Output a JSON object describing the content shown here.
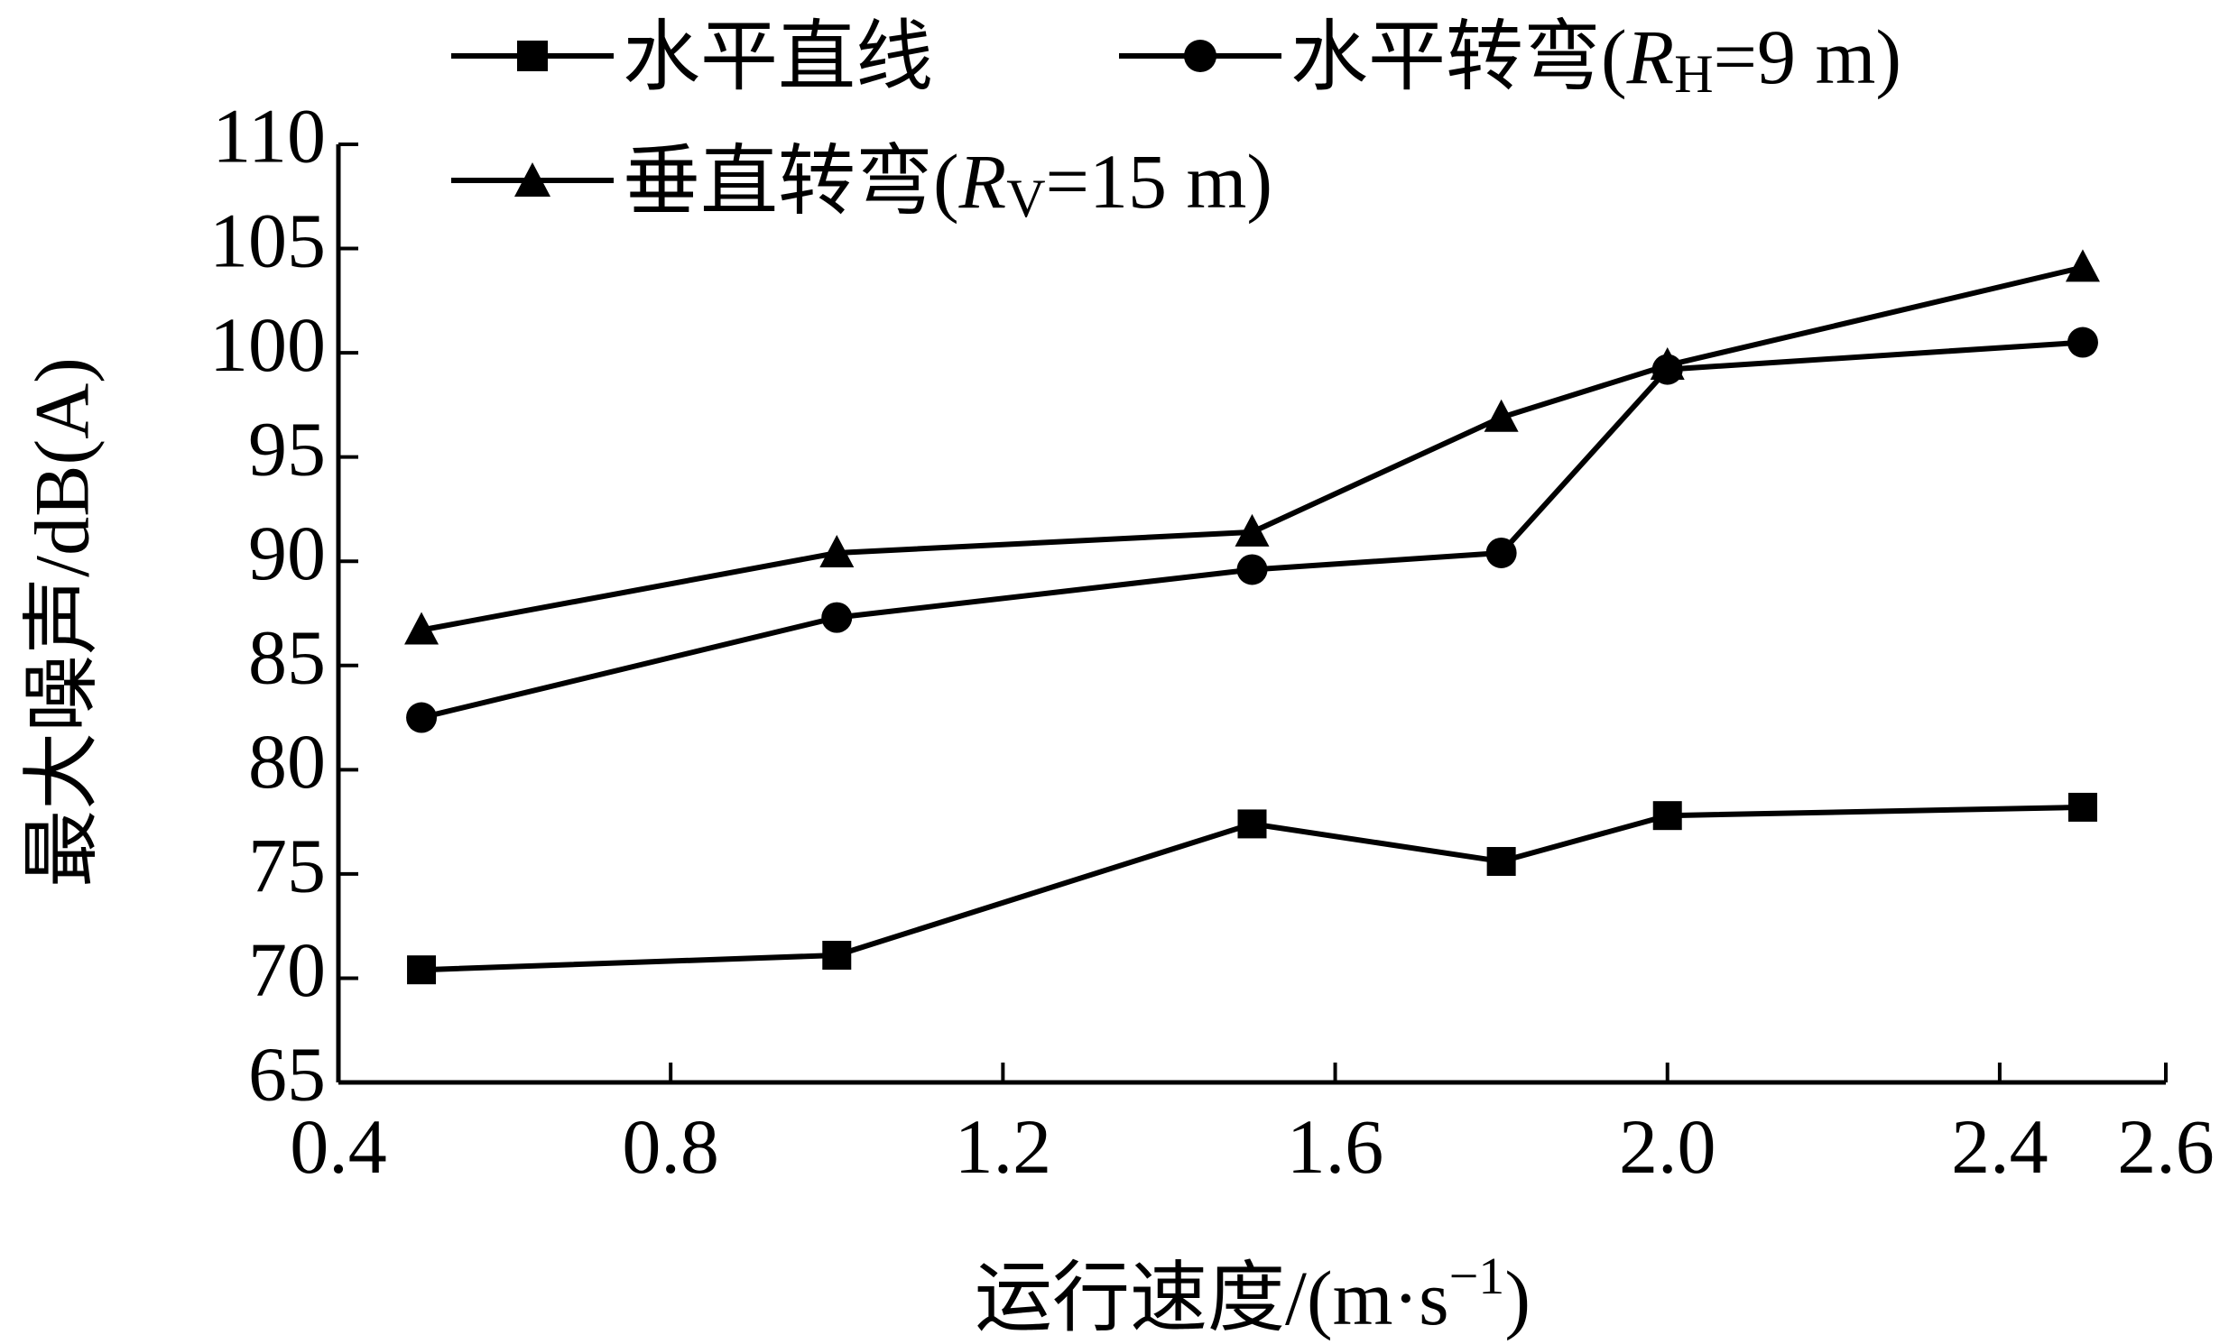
{
  "chart_data": {
    "type": "line",
    "title": "",
    "xlabel_prefix": "运行速度/(m·s",
    "xlabel_sup": "−1",
    "xlabel_suffix": ")",
    "ylabel": "最大噪声/dB(A)",
    "xlim": [
      0.4,
      2.6
    ],
    "ylim": [
      65,
      110
    ],
    "xticks": [
      "0.4",
      "0.8",
      "1.2",
      "1.6",
      "2.0",
      "2.4",
      "2.6"
    ],
    "yticks": [
      "65",
      "70",
      "75",
      "80",
      "85",
      "90",
      "95",
      "100",
      "105",
      "110"
    ],
    "grid": false,
    "legend_position": "top",
    "series": [
      {
        "name": "水平直线",
        "name_base": "水平直线",
        "marker": "square",
        "color": "#000000",
        "x": [
          0.5,
          1.0,
          1.5,
          1.8,
          2.0,
          2.5
        ],
        "y": [
          70.4,
          71.1,
          77.4,
          75.6,
          77.8,
          78.2
        ]
      },
      {
        "name": "水平转弯(RH=9 m)",
        "name_base": "水平转弯(",
        "name_var": "R",
        "name_sub": "H",
        "name_tail": "=9 m)",
        "marker": "circle",
        "color": "#000000",
        "x": [
          0.5,
          1.0,
          1.5,
          1.8,
          2.0,
          2.5
        ],
        "y": [
          82.5,
          87.3,
          89.6,
          90.4,
          99.2,
          100.5
        ]
      },
      {
        "name": "垂直转弯(RV=15 m)",
        "name_base": "垂直转弯(",
        "name_var": "R",
        "name_sub": "V",
        "name_tail": "=15 m)",
        "marker": "triangle",
        "color": "#000000",
        "x": [
          0.5,
          1.0,
          1.5,
          1.8,
          2.0,
          2.5
        ],
        "y": [
          86.7,
          90.4,
          91.4,
          96.9,
          99.4,
          104.1
        ]
      }
    ]
  }
}
